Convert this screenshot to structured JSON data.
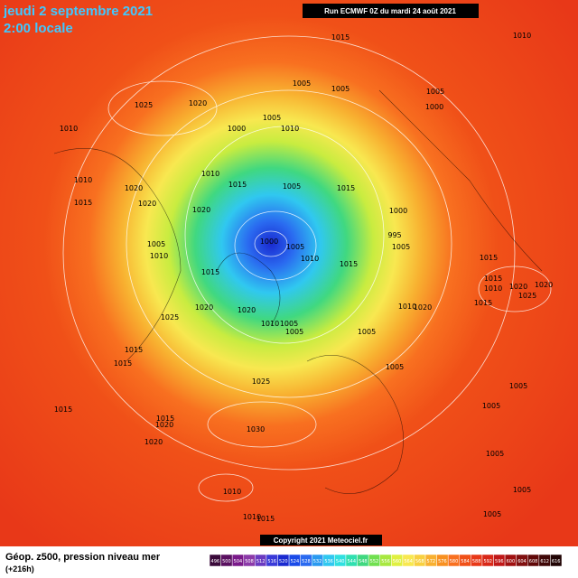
{
  "header": {
    "date": "jeudi 2 septembre 2021",
    "time": "2:00 locale",
    "run": "Run ECMWF 0Z du mardi 24 août 2021"
  },
  "copyright": "Copyright 2021 Meteociel.fr",
  "footer": {
    "title": "Géop. z500, pression niveau mer",
    "lead": "(+216h)"
  },
  "scale": {
    "labels": [
      "496",
      "500",
      "504",
      "508",
      "512",
      "516",
      "520",
      "524",
      "528",
      "532",
      "536",
      "540",
      "544",
      "548",
      "552",
      "556",
      "560",
      "564",
      "568",
      "572",
      "576",
      "580",
      "584",
      "588",
      "592",
      "596",
      "600",
      "604",
      "608",
      "612",
      "616"
    ],
    "colors": [
      "#3a0a3a",
      "#5a1060",
      "#7a1a8a",
      "#8c3aa8",
      "#6a3ac0",
      "#3a3ad8",
      "#1a2ad0",
      "#1a4ae8",
      "#2a6af0",
      "#2a9af0",
      "#30c8f0",
      "#30e0e0",
      "#30e0b0",
      "#40d880",
      "#70e050",
      "#a8e840",
      "#e0f040",
      "#f8e850",
      "#f8d040",
      "#f8b030",
      "#f89020",
      "#f87020",
      "#f05018",
      "#e83818",
      "#d82818",
      "#c01818",
      "#a01010",
      "#801010",
      "#600808",
      "#400808",
      "#200404"
    ]
  },
  "pressure_labels": [
    "1015",
    "1010",
    "1010",
    "1025",
    "1020",
    "1005",
    "1005",
    "1005",
    "1000",
    "1005",
    "1010",
    "1000",
    "1010",
    "1015",
    "1005",
    "1015",
    "1020",
    "1010",
    "1015",
    "1020",
    "1020",
    "1000",
    "995",
    "1005",
    "1000",
    "1005",
    "1010",
    "1015",
    "1005",
    "1010",
    "1015",
    "1015",
    "1015",
    "1010",
    "1020",
    "1025",
    "1020",
    "1010",
    "1020",
    "1015",
    "1020",
    "1020",
    "1010",
    "1005",
    "1005",
    "1005",
    "1025",
    "1015",
    "1015",
    "1005",
    "1005",
    "1025",
    "1005",
    "1015",
    "1015",
    "1020",
    "1030",
    "1020",
    "1005",
    "1010",
    "1005",
    "1005",
    "1015",
    "1010"
  ]
}
